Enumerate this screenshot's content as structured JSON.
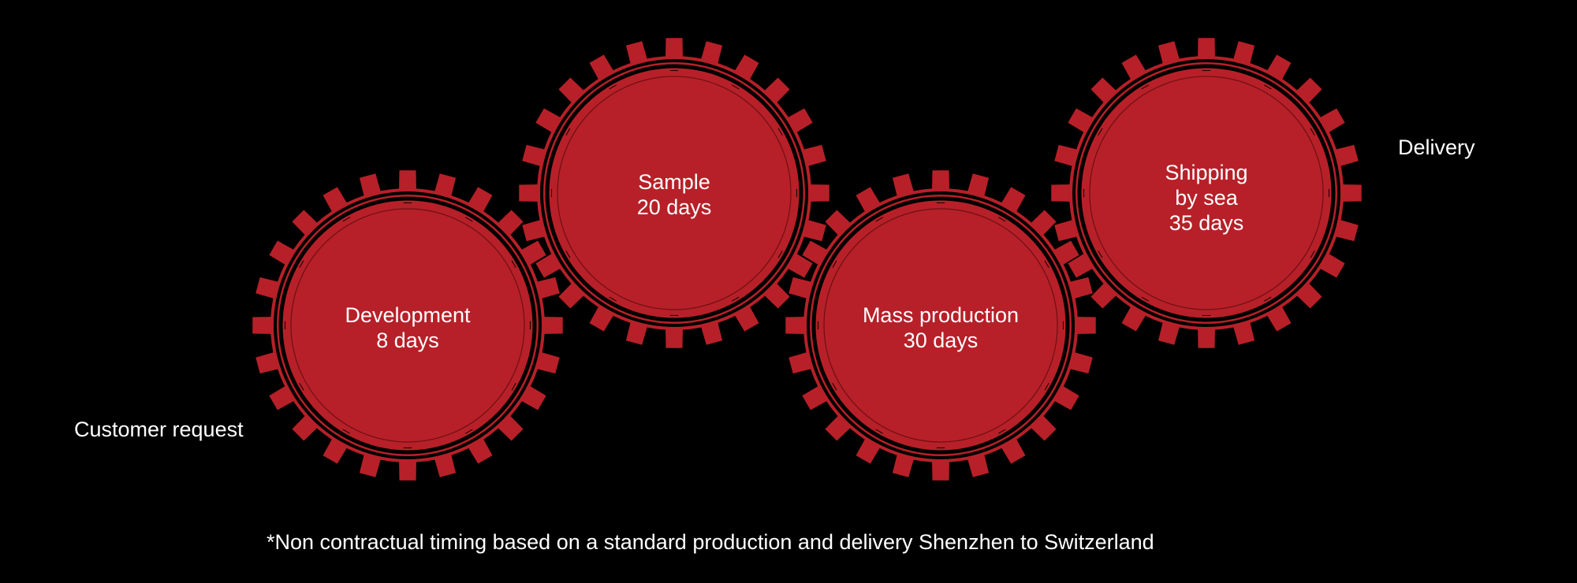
{
  "colors": {
    "background": "#000000",
    "gear_red": "#b72028",
    "text": "#ffffff"
  },
  "start_label": "Customer request",
  "end_label": "Delivery",
  "gears": [
    {
      "lines": [
        "Development",
        "8 days"
      ]
    },
    {
      "lines": [
        "Sample",
        "20 days"
      ]
    },
    {
      "lines": [
        "Mass production",
        "30 days"
      ]
    },
    {
      "lines": [
        "Shipping",
        "by sea",
        "35 days"
      ]
    }
  ],
  "footnote": "*Non contractual timing based on a standard production and delivery Shenzhen to Switzerland"
}
